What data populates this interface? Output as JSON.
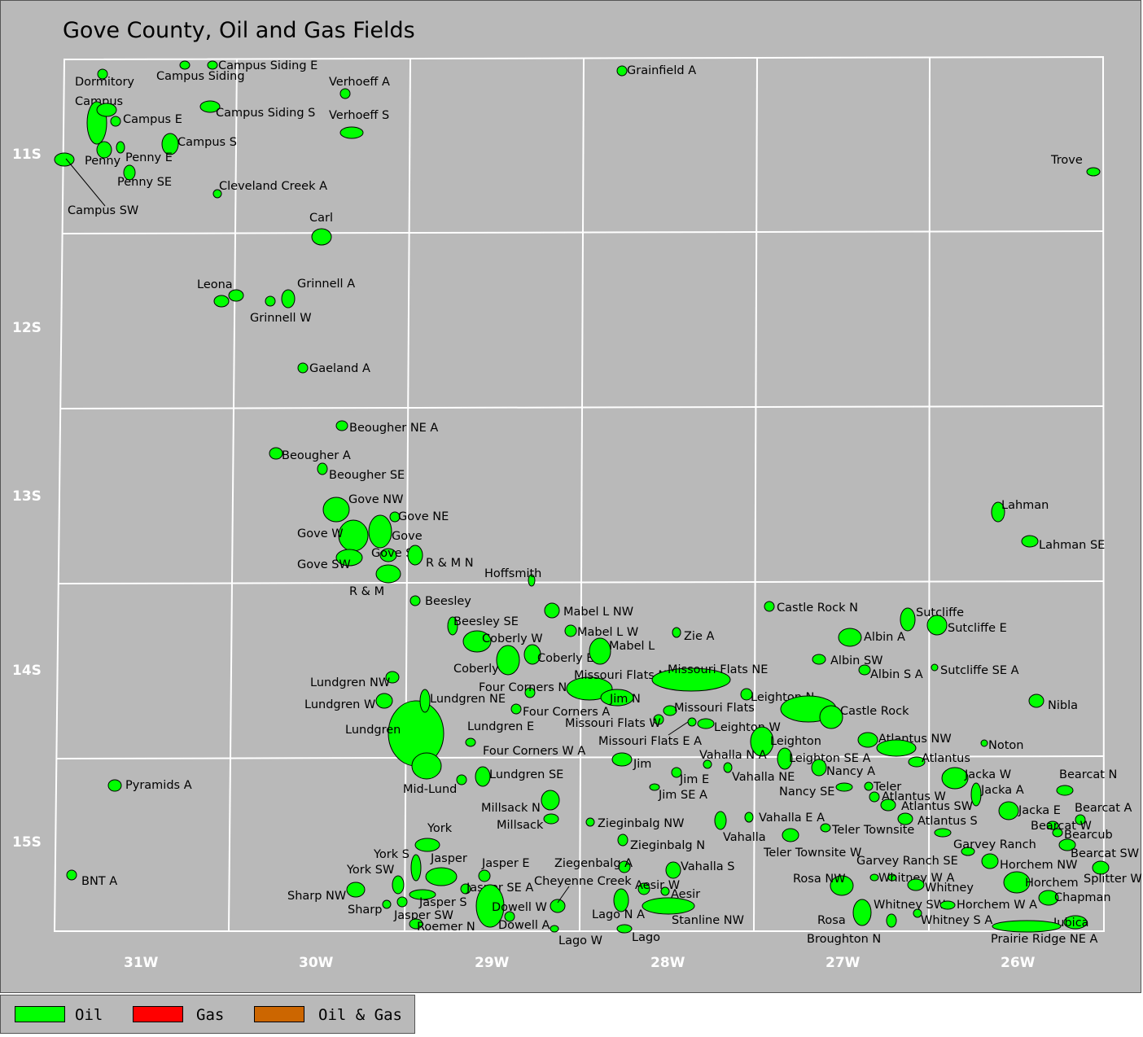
{
  "title": "Gove County, Oil and Gas Fields",
  "colors": {
    "background": "#b9b9b9",
    "grid": "#ffffff",
    "oil": "#00ff00",
    "gas": "#ff0000",
    "oil_gas": "#cc6600",
    "outline": "#000000"
  },
  "township_labels": [
    "11S",
    "12S",
    "13S",
    "14S",
    "15S"
  ],
  "range_labels": [
    "31W",
    "30W",
    "29W",
    "28W",
    "27W",
    "26W"
  ],
  "legend": [
    {
      "label": "Oil",
      "color_key": "oil"
    },
    {
      "label": "Gas",
      "color_key": "gas"
    },
    {
      "label": "Oil & Gas",
      "color_key": "oil_gas"
    }
  ],
  "fields": [
    "Campus Siding E",
    "Campus Siding",
    "Dormitory",
    "Campus",
    "Campus E",
    "Campus Siding S",
    "Campus S",
    "Penny",
    "Penny E",
    "Penny SE",
    "Campus SW",
    "Cleveland Creek A",
    "Verhoeff A",
    "Verhoeff S",
    "Grainfield A",
    "Trove",
    "Carl",
    "Leona",
    "Grinnell A",
    "Grinnell W",
    "Gaeland A",
    "Beougher NE A",
    "Beougher A",
    "Beougher SE",
    "Gove NW",
    "Gove NE",
    "Gove W",
    "Gove",
    "Gove SW",
    "Gove S",
    "R & M N",
    "R & M",
    "Hoffsmith",
    "Beesley",
    "Beesley SE",
    "Coberly W",
    "Coberly",
    "Coberly E",
    "Mabel L NW",
    "Mabel L W",
    "Mabel L",
    "Zie A",
    "Castle Rock N",
    "Sutcliffe",
    "Sutcliffe E",
    "Albin A",
    "Albin SW",
    "Albin S A",
    "Sutcliffe SE A",
    "Lahman",
    "Lahman SE",
    "Nibla",
    "Lundgren NW",
    "Lundgren W",
    "Lundgren",
    "Lundgren NE",
    "Four Corners N",
    "Missouri Flats NW A",
    "Missouri Flats NE",
    "Jim N",
    "Four Corners A",
    "Missouri Flats W",
    "Missouri Flats",
    "Leighton N",
    "Castle Rock",
    "Lundgren E",
    "Missouri Flats E A",
    "Leighton W",
    "Leighton",
    "Atlantus NW",
    "Noton",
    "Four Corners W A",
    "Vahalla N A",
    "Leighton SE A",
    "Atlantus",
    "Jim",
    "Lundgren SE",
    "Jim E",
    "Vahalla NE",
    "Nancy A",
    "Jacka W",
    "Bearcat N",
    "Mid-Lund",
    "Jim SE A",
    "Nancy SE",
    "Teler",
    "Jacka A",
    "Atlantus W",
    "Atlantus SW",
    "Jacka E",
    "Bearcat A",
    "Pyramids A",
    "Millsack N",
    "Millsack",
    "Zieginbalg NW",
    "Vahalla E A",
    "Atlantus S",
    "Bearcat W",
    "Bearcub",
    "York",
    "Zieginbalg N",
    "Vahalla",
    "Teler Townsite",
    "Garvey Ranch",
    "Bearcat SW",
    "York S",
    "Jasper",
    "Jasper E",
    "Ziegenbalg A",
    "Vahalla S",
    "Teler Townsite W",
    "Garvey Ranch SE",
    "Horchem NW",
    "Splitter W",
    "York SW",
    "BNT A",
    "Cheyenne Creek",
    "Aesir W",
    "Rosa NW",
    "Whitney W A",
    "Whitney",
    "Horchem",
    "Sharp NW",
    "Jasper SE A",
    "Aesir",
    "Chapman",
    "Jasper S",
    "Dowell W",
    "Whitney SW",
    "Horchem W A",
    "Sharp",
    "Jasper SW",
    "Lago N A",
    "Stanline NW",
    "Rosa",
    "Whitney S A",
    "Jubica",
    "Roemer N",
    "Dowell A",
    "Prairie Ridge NE A",
    "Lago W",
    "Lago",
    "Broughton N"
  ]
}
